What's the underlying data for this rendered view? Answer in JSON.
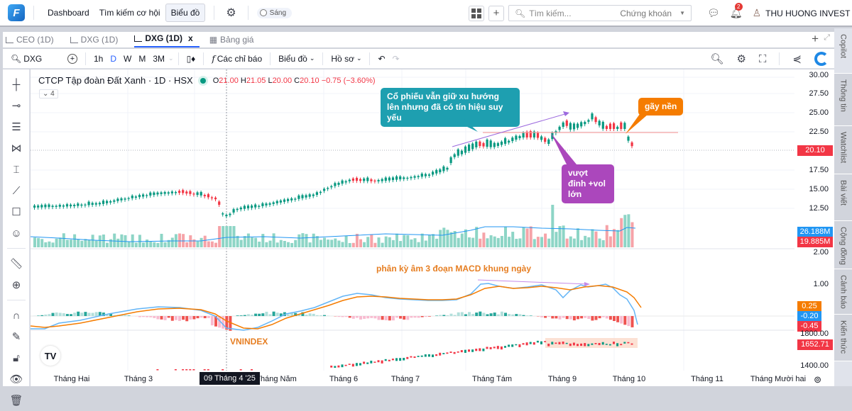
{
  "topbar": {
    "logo": "F",
    "nav": [
      "Dashboard",
      "Tìm kiếm cơ hội",
      "Biểu đồ"
    ],
    "active_nav": "Biểu đồ",
    "theme_toggle": "Sáng",
    "search_placeholder": "Tìm kiếm...",
    "search_category": "Chứng khoán",
    "notification_count": "2",
    "user_name": "THU HUONG INVEST"
  },
  "tabs": [
    {
      "label": "CEO (1D)",
      "active": false
    },
    {
      "label": "DXG (1D)",
      "active": false
    },
    {
      "label": "DXG (1D)",
      "active": true,
      "close": "x"
    },
    {
      "label": "Bảng giá",
      "active": false
    }
  ],
  "toolbar": {
    "symbol": "DXG",
    "intervals": [
      "1h",
      "D",
      "W",
      "M",
      "3M"
    ],
    "active_interval": "D",
    "indicators": "Các chỉ báo",
    "chart_type": "Biểu đồ",
    "profile": "Hồ sơ"
  },
  "legend": {
    "title": "CTCP Tập đoàn Đất Xanh · 1D · HSX",
    "o_label": "O",
    "o": "21.00",
    "h_label": "H",
    "h": "21.05",
    "l_label": "L",
    "l": "20.00",
    "c_label": "C",
    "c": "20.10",
    "change": "−0.75 (−3.60%)",
    "collapse": "⌄ 4"
  },
  "price_axis": [
    "30.00",
    "27.50",
    "25.00",
    "22.50",
    "17.50",
    "15.00",
    "12.50"
  ],
  "labels": {
    "last_price": "20.10",
    "vol_ma": "26.188M",
    "vol": "19.885M",
    "macd_axis_top": "2.00",
    "macd_axis_mid": "1.00",
    "signal": "0.25",
    "macd": "-0.20",
    "hist": "-0.45",
    "vnindex_axis_top": "1800.00",
    "vnindex_last": "1652.71",
    "vnindex_axis_bot": "1400.00"
  },
  "colors": {
    "up": "#089981",
    "down": "#f23645",
    "macd": "#2196f3",
    "signal": "#f57c00",
    "callout_teal": "#1e9fb0",
    "callout_purple": "#9c27b0",
    "callout_orange": "#f57c00"
  },
  "annotations": {
    "trend": "Cổ phiếu vẫn giữ xu hướng lên nhưng đã có tín hiệu suy yếu",
    "breakout": "vượt đỉnh +vol lớn",
    "breakdown": "gãy nền",
    "macd_div": "phân kỳ âm 3 đoạn MACD khung ngày",
    "vnindex": "VNINDEX"
  },
  "time_axis": [
    "Tháng Hai",
    "Tháng 3",
    "Tháng Năm",
    "Tháng 6",
    "Tháng 7",
    "Tháng Tám",
    "Tháng 9",
    "Tháng 10",
    "Tháng 11",
    "Tháng Mười hai"
  ],
  "crosshair_date": "09 Tháng 4 '25",
  "right_sidebar": [
    "Copilot",
    "Thông tin",
    "Watchlist",
    "Bài viết",
    "Cộng đồng",
    "Cảnh báo",
    "Kiến thức"
  ]
}
